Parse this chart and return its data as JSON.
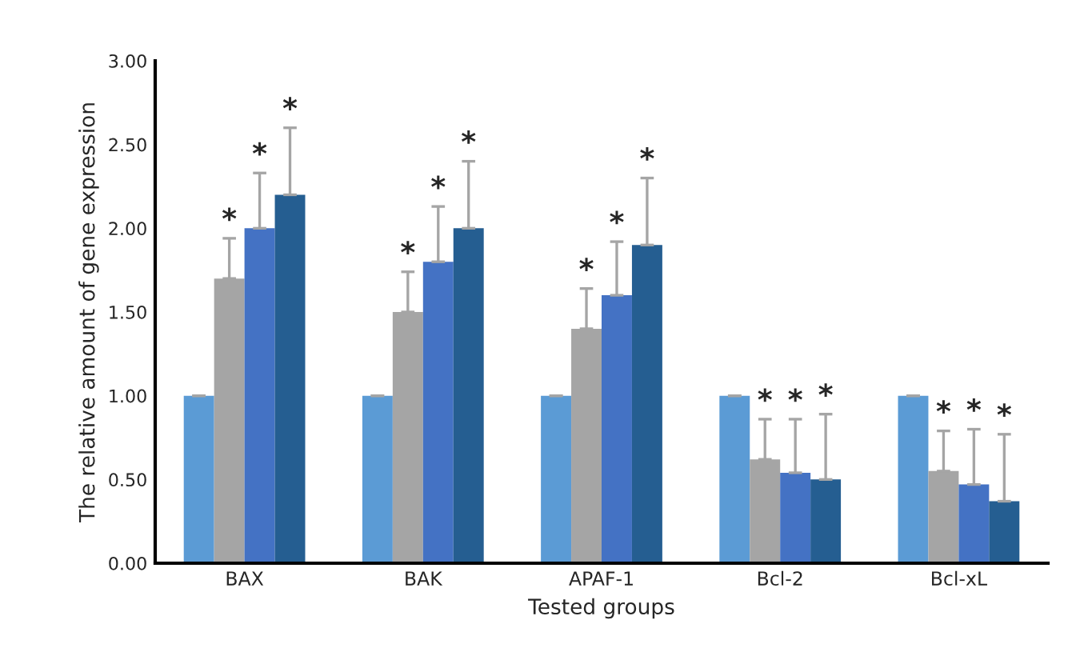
{
  "chart_data": {
    "type": "bar",
    "xlabel": "Tested groups",
    "ylabel": "The relative amount of gene expression",
    "categories": [
      "BAX",
      "BAK",
      "APAF-1",
      "Bcl-2",
      "Bcl-xL"
    ],
    "ylim": [
      0,
      3
    ],
    "yticks": [
      {
        "value": 0,
        "label": "0.00"
      },
      {
        "value": 0.5,
        "label": "0.50"
      },
      {
        "value": 1,
        "label": "1.00"
      },
      {
        "value": 1.5,
        "label": "1.50"
      },
      {
        "value": 2,
        "label": "2.00"
      },
      {
        "value": 2.5,
        "label": "2.50"
      },
      {
        "value": 3,
        "label": "3.00"
      }
    ],
    "grid": false,
    "legend": false,
    "series": [
      {
        "color": "#5b9bd5",
        "values": [
          1.0,
          1.0,
          1.0,
          1.0,
          1.0
        ],
        "errors": [
          [
            1.0,
            1.0
          ],
          [
            1.0,
            1.0
          ],
          [
            1.0,
            1.0
          ],
          [
            1.0,
            1.0
          ],
          [
            1.0,
            1.0
          ]
        ],
        "value_labels": [
          null,
          null,
          null,
          null,
          null
        ]
      },
      {
        "color": "#a5a5a5",
        "values": [
          1.7,
          1.5,
          1.4,
          0.62,
          0.55
        ],
        "errors": [
          [
            1.7,
            1.94
          ],
          [
            1.5,
            1.74
          ],
          [
            1.4,
            1.64
          ],
          [
            0.62,
            0.86
          ],
          [
            0.55,
            0.79
          ]
        ],
        "value_labels": [
          "*",
          "*",
          "*",
          "*",
          "*"
        ]
      },
      {
        "color": "#4472c4",
        "values": [
          2.0,
          1.8,
          1.6,
          0.54,
          0.47
        ],
        "errors": [
          [
            2.0,
            2.33
          ],
          [
            1.8,
            2.13
          ],
          [
            1.6,
            1.92
          ],
          [
            0.54,
            0.86
          ],
          [
            0.47,
            0.8
          ]
        ],
        "value_labels": [
          "*",
          "*",
          "*",
          "*",
          "*"
        ]
      },
      {
        "color": "#255e91",
        "values": [
          2.2,
          2.0,
          1.9,
          0.5,
          0.37
        ],
        "errors": [
          [
            2.2,
            2.6
          ],
          [
            2.0,
            2.4
          ],
          [
            1.9,
            2.3
          ],
          [
            0.5,
            0.89
          ],
          [
            0.37,
            0.77
          ]
        ],
        "value_labels": [
          "*",
          "*",
          "*",
          "*",
          "*"
        ]
      }
    ]
  }
}
